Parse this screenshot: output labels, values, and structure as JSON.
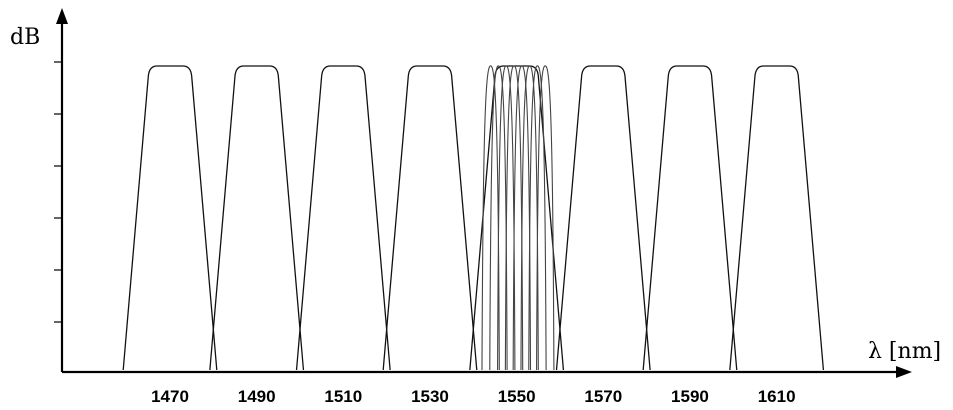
{
  "chart_data": {
    "type": "line",
    "title": "",
    "ylabel": "dB",
    "xlabel": "λ [nm]",
    "x_ticks": [
      1470,
      1490,
      1510,
      1530,
      1550,
      1570,
      1590,
      1610
    ],
    "y_tick_count": 6,
    "xlim": [
      1446,
      1653
    ],
    "grid": false,
    "legend": "none",
    "cwdm_channels": {
      "centers": [
        1470,
        1490,
        1510,
        1530,
        1550,
        1570,
        1590,
        1610
      ],
      "base_half_width_nm": 10.8,
      "top_half_width_nm": 5.0,
      "shoulder_nm": 2.0
    },
    "dwdm_channels": {
      "centers": [
        1544,
        1545.8,
        1547.6,
        1549.4,
        1551.2,
        1553,
        1554.8,
        1556.6
      ],
      "base_half_width_nm": 2.0,
      "top_half_width_nm": 0.8
    }
  }
}
